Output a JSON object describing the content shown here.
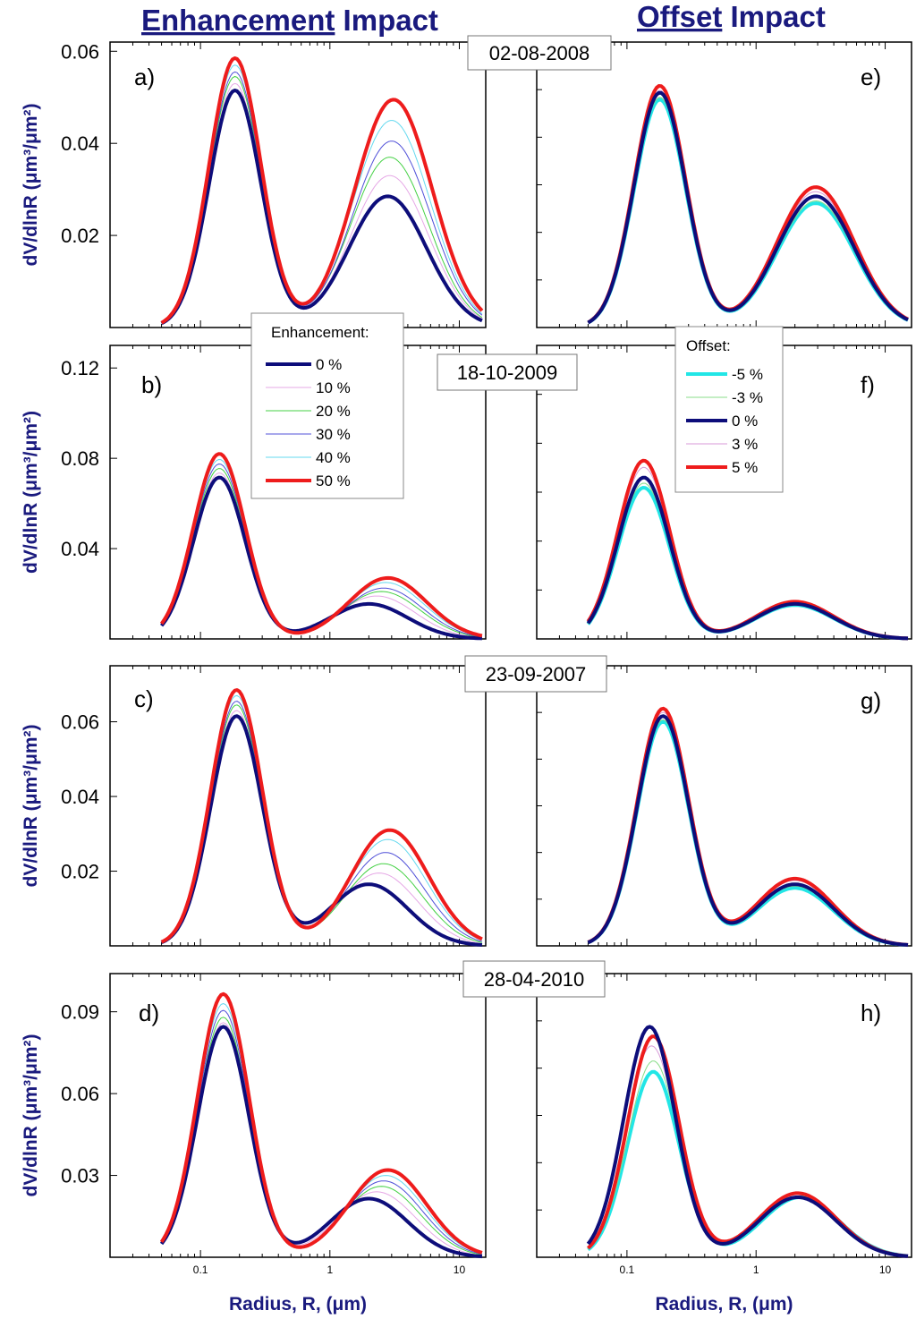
{
  "headers": {
    "left_underlined": "Enhancement",
    "left_rest": " Impact",
    "right_underlined": "Offset",
    "right_rest": " Impact"
  },
  "axis": {
    "ylabel": "dV/dlnR (μm³/μm²)",
    "xlabel": "Radius, R, (μm)",
    "x_ticks": [
      "0.1",
      "1",
      "10"
    ]
  },
  "legends": {
    "enhancement": {
      "title": "Enhancement:",
      "entries": [
        {
          "label": "0 %",
          "color": "#0d0d7a",
          "width": 4
        },
        {
          "label": "10 %",
          "color": "#e6a8e6",
          "width": 1
        },
        {
          "label": "20 %",
          "color": "#44d144",
          "width": 1
        },
        {
          "label": "30 %",
          "color": "#5050d8",
          "width": 1
        },
        {
          "label": "40 %",
          "color": "#66d9ef",
          "width": 1
        },
        {
          "label": "50 %",
          "color": "#ee1c1c",
          "width": 4
        }
      ]
    },
    "offset": {
      "title": "Offset:",
      "entries": [
        {
          "label": "-5 %",
          "color": "#22e6e6",
          "width": 4
        },
        {
          "label": "-3 %",
          "color": "#88dd88",
          "width": 1
        },
        {
          "label": "0 %",
          "color": "#0d0d7a",
          "width": 4
        },
        {
          "label": "3 %",
          "color": "#d89ad8",
          "width": 1
        },
        {
          "label": "5 %",
          "color": "#ee1c1c",
          "width": 4
        }
      ]
    }
  },
  "chart_data": [
    {
      "type": "line",
      "panel": "a)",
      "date": "02-08-2008",
      "xscale": "log",
      "xlim": [
        0.02,
        16
      ],
      "ylim": [
        0,
        0.062
      ],
      "y_ticks": [
        "0.02",
        "0.04",
        "0.06"
      ],
      "series": [
        {
          "name": "0 %",
          "fine": [
            0.185,
            0.0515
          ],
          "coarse": [
            2.8,
            0.0285
          ],
          "min": [
            0.6,
            0.0065
          ]
        },
        {
          "name": "10 %",
          "fine": [
            0.185,
            0.053
          ],
          "coarse": [
            2.9,
            0.033
          ],
          "min": [
            0.6,
            0.0058
          ]
        },
        {
          "name": "20 %",
          "fine": [
            0.185,
            0.0545
          ],
          "coarse": [
            2.9,
            0.037
          ],
          "min": [
            0.6,
            0.0054
          ]
        },
        {
          "name": "30 %",
          "fine": [
            0.185,
            0.0555
          ],
          "coarse": [
            3.0,
            0.0405
          ],
          "min": [
            0.6,
            0.005
          ]
        },
        {
          "name": "40 %",
          "fine": [
            0.185,
            0.057
          ],
          "coarse": [
            3.0,
            0.045
          ],
          "min": [
            0.6,
            0.0048
          ]
        },
        {
          "name": "50 %",
          "fine": [
            0.185,
            0.0585
          ],
          "coarse": [
            3.1,
            0.0495
          ],
          "min": [
            0.6,
            0.0047
          ]
        }
      ]
    },
    {
      "type": "line",
      "panel": "e)",
      "xscale": "log",
      "xlim": [
        0.02,
        16
      ],
      "ylim": [
        0,
        0.062
      ],
      "y_ticks": [],
      "series": [
        {
          "name": "-5 %",
          "fine": [
            0.18,
            0.0495
          ],
          "coarse": [
            2.9,
            0.027
          ],
          "min": [
            0.62,
            0.0065
          ]
        },
        {
          "name": "-3 %",
          "fine": [
            0.18,
            0.05
          ],
          "coarse": [
            2.9,
            0.0275
          ],
          "min": [
            0.62,
            0.0065
          ]
        },
        {
          "name": "0 %",
          "fine": [
            0.18,
            0.051
          ],
          "coarse": [
            2.9,
            0.0285
          ],
          "min": [
            0.62,
            0.0065
          ]
        },
        {
          "name": "3 %",
          "fine": [
            0.18,
            0.0515
          ],
          "coarse": [
            2.9,
            0.0295
          ],
          "min": [
            0.62,
            0.0065
          ]
        },
        {
          "name": "5 %",
          "fine": [
            0.18,
            0.0525
          ],
          "coarse": [
            2.9,
            0.0305
          ],
          "min": [
            0.62,
            0.0065
          ]
        }
      ]
    },
    {
      "type": "line",
      "panel": "b)",
      "date": "18-10-2009",
      "xscale": "log",
      "xlim": [
        0.02,
        16
      ],
      "ylim": [
        0,
        0.13
      ],
      "y_ticks": [
        "0.04",
        "0.08",
        "0.12"
      ],
      "series": [
        {
          "name": "0 %",
          "fine": [
            0.14,
            0.0715
          ],
          "coarse": [
            2.0,
            0.0155
          ],
          "min": [
            0.6,
            0.006
          ]
        },
        {
          "name": "10 %",
          "fine": [
            0.14,
            0.0735
          ],
          "coarse": [
            2.3,
            0.019
          ],
          "min": [
            0.6,
            0.0058
          ]
        },
        {
          "name": "20 %",
          "fine": [
            0.14,
            0.0755
          ],
          "coarse": [
            2.5,
            0.021
          ],
          "min": [
            0.6,
            0.0056
          ]
        },
        {
          "name": "30 %",
          "fine": [
            0.14,
            0.0775
          ],
          "coarse": [
            2.6,
            0.0225
          ],
          "min": [
            0.6,
            0.0055
          ]
        },
        {
          "name": "40 %",
          "fine": [
            0.14,
            0.0795
          ],
          "coarse": [
            2.7,
            0.025
          ],
          "min": [
            0.6,
            0.0054
          ]
        },
        {
          "name": "50 %",
          "fine": [
            0.14,
            0.082
          ],
          "coarse": [
            2.8,
            0.027
          ],
          "min": [
            0.6,
            0.0053
          ]
        }
      ]
    },
    {
      "type": "line",
      "panel": "f)",
      "xscale": "log",
      "xlim": [
        0.02,
        16
      ],
      "ylim": [
        0,
        0.13
      ],
      "y_ticks": [],
      "series": [
        {
          "name": "-5 %",
          "fine": [
            0.135,
            0.067
          ],
          "coarse": [
            2.0,
            0.015
          ],
          "min": [
            0.6,
            0.006
          ]
        },
        {
          "name": "-3 %",
          "fine": [
            0.135,
            0.069
          ],
          "coarse": [
            2.0,
            0.0152
          ],
          "min": [
            0.6,
            0.006
          ]
        },
        {
          "name": "0 %",
          "fine": [
            0.135,
            0.0715
          ],
          "coarse": [
            2.0,
            0.0155
          ],
          "min": [
            0.6,
            0.006
          ]
        },
        {
          "name": "3 %",
          "fine": [
            0.135,
            0.076
          ],
          "coarse": [
            2.0,
            0.016
          ],
          "min": [
            0.6,
            0.006
          ]
        },
        {
          "name": "5 %",
          "fine": [
            0.135,
            0.079
          ],
          "coarse": [
            2.0,
            0.0165
          ],
          "min": [
            0.6,
            0.006
          ]
        }
      ]
    },
    {
      "type": "line",
      "panel": "c)",
      "date": "23-09-2007",
      "xscale": "log",
      "xlim": [
        0.02,
        16
      ],
      "ylim": [
        0,
        0.075
      ],
      "y_ticks": [
        "0.02",
        "0.04",
        "0.06"
      ],
      "series": [
        {
          "name": "0 %",
          "fine": [
            0.19,
            0.0615
          ],
          "coarse": [
            2.0,
            0.0165
          ],
          "min": [
            0.58,
            0.005
          ]
        },
        {
          "name": "10 %",
          "fine": [
            0.19,
            0.063
          ],
          "coarse": [
            2.4,
            0.0195
          ],
          "min": [
            0.58,
            0.0045
          ]
        },
        {
          "name": "20 %",
          "fine": [
            0.19,
            0.0645
          ],
          "coarse": [
            2.6,
            0.022
          ],
          "min": [
            0.58,
            0.0042
          ]
        },
        {
          "name": "30 %",
          "fine": [
            0.19,
            0.0655
          ],
          "coarse": [
            2.7,
            0.025
          ],
          "min": [
            0.58,
            0.004
          ]
        },
        {
          "name": "40 %",
          "fine": [
            0.19,
            0.067
          ],
          "coarse": [
            2.8,
            0.0285
          ],
          "min": [
            0.58,
            0.0039
          ]
        },
        {
          "name": "50 %",
          "fine": [
            0.19,
            0.0685
          ],
          "coarse": [
            2.9,
            0.031
          ],
          "min": [
            0.58,
            0.0038
          ]
        }
      ]
    },
    {
      "type": "line",
      "panel": "g)",
      "xscale": "log",
      "xlim": [
        0.02,
        16
      ],
      "ylim": [
        0,
        0.075
      ],
      "y_ticks": [],
      "series": [
        {
          "name": "-5 %",
          "fine": [
            0.19,
            0.06
          ],
          "coarse": [
            2.0,
            0.0155
          ],
          "min": [
            0.6,
            0.005
          ]
        },
        {
          "name": "-3 %",
          "fine": [
            0.19,
            0.0605
          ],
          "coarse": [
            2.0,
            0.016
          ],
          "min": [
            0.6,
            0.005
          ]
        },
        {
          "name": "0 %",
          "fine": [
            0.19,
            0.0615
          ],
          "coarse": [
            2.0,
            0.0165
          ],
          "min": [
            0.6,
            0.005
          ]
        },
        {
          "name": "3 %",
          "fine": [
            0.19,
            0.0625
          ],
          "coarse": [
            2.0,
            0.0175
          ],
          "min": [
            0.6,
            0.005
          ]
        },
        {
          "name": "5 %",
          "fine": [
            0.19,
            0.0635
          ],
          "coarse": [
            2.0,
            0.018
          ],
          "min": [
            0.6,
            0.005
          ]
        }
      ]
    },
    {
      "type": "line",
      "panel": "d)",
      "date": "28-04-2010",
      "xscale": "log",
      "xlim": [
        0.02,
        16
      ],
      "ylim": [
        0,
        0.104
      ],
      "y_ticks": [
        "0.03",
        "0.06",
        "0.09"
      ],
      "series": [
        {
          "name": "0 %",
          "fine": [
            0.15,
            0.0845
          ],
          "coarse": [
            2.0,
            0.0215
          ],
          "min": [
            0.6,
            0.008
          ]
        },
        {
          "name": "10 %",
          "fine": [
            0.15,
            0.086
          ],
          "coarse": [
            2.3,
            0.024
          ],
          "min": [
            0.6,
            0.0078
          ]
        },
        {
          "name": "20 %",
          "fine": [
            0.15,
            0.088
          ],
          "coarse": [
            2.5,
            0.026
          ],
          "min": [
            0.6,
            0.0076
          ]
        },
        {
          "name": "30 %",
          "fine": [
            0.15,
            0.0905
          ],
          "coarse": [
            2.6,
            0.028
          ],
          "min": [
            0.6,
            0.0075
          ]
        },
        {
          "name": "40 %",
          "fine": [
            0.15,
            0.093
          ],
          "coarse": [
            2.7,
            0.03
          ],
          "min": [
            0.6,
            0.0074
          ]
        },
        {
          "name": "50 %",
          "fine": [
            0.15,
            0.0965
          ],
          "coarse": [
            2.8,
            0.032
          ],
          "min": [
            0.6,
            0.0073
          ]
        }
      ]
    },
    {
      "type": "line",
      "panel": "h)",
      "xscale": "log",
      "xlim": [
        0.02,
        16
      ],
      "ylim": [
        0,
        0.104
      ],
      "y_ticks": [],
      "series": [
        {
          "name": "-5 %",
          "fine": [
            0.16,
            0.068
          ],
          "coarse": [
            2.2,
            0.022
          ],
          "min": [
            0.65,
            0.008
          ]
        },
        {
          "name": "-3 %",
          "fine": [
            0.16,
            0.072
          ],
          "coarse": [
            2.2,
            0.0225
          ],
          "min": [
            0.65,
            0.008
          ]
        },
        {
          "name": "0 %",
          "fine": [
            0.15,
            0.0845
          ],
          "coarse": [
            2.1,
            0.022
          ],
          "min": [
            0.65,
            0.008
          ]
        },
        {
          "name": "3 %",
          "fine": [
            0.155,
            0.0775
          ],
          "coarse": [
            2.1,
            0.023
          ],
          "min": [
            0.65,
            0.008
          ]
        },
        {
          "name": "5 %",
          "fine": [
            0.16,
            0.081
          ],
          "coarse": [
            2.1,
            0.0235
          ],
          "min": [
            0.65,
            0.008
          ]
        }
      ]
    }
  ]
}
